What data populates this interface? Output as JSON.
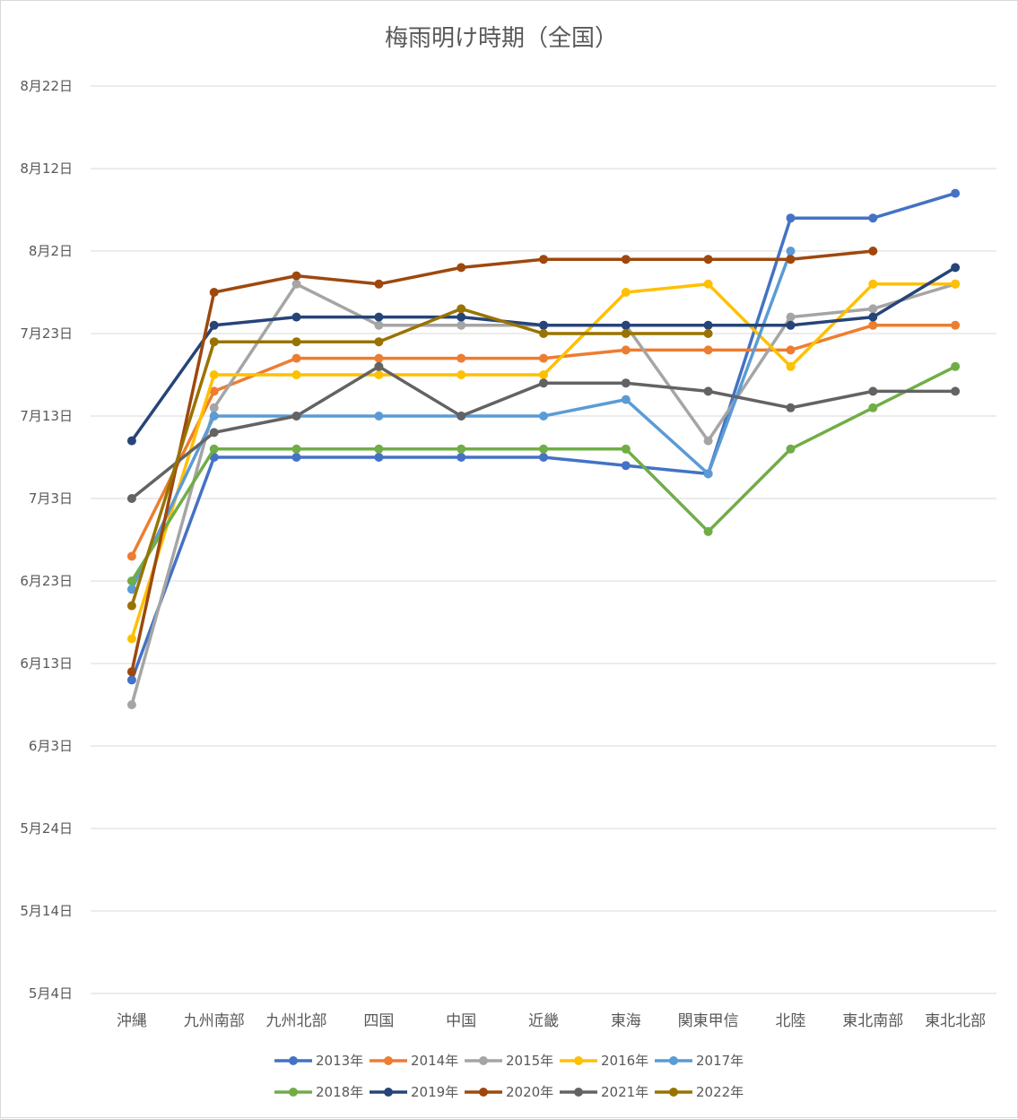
{
  "chart_data": {
    "type": "line",
    "title": "梅雨明け時期（全国）",
    "categories": [
      "沖縄",
      "九州南部",
      "九州北部",
      "四国",
      "中国",
      "近畿",
      "東海",
      "関東甲信",
      "北陸",
      "東北南部",
      "東北北部"
    ],
    "y_ticks": [
      "5月4日",
      "5月14日",
      "5月24日",
      "6月3日",
      "6月13日",
      "6月23日",
      "7月3日",
      "7月13日",
      "7月23日",
      "8月2日",
      "8月12日",
      "8月22日"
    ],
    "ylim": [
      "5月4日",
      "8月22日"
    ],
    "grid": true,
    "legend_position": "bottom",
    "series": [
      {
        "name": "2013年",
        "color": "#4472C4",
        "values": [
          "6月11日",
          "7月8日",
          "7月8日",
          "7月8日",
          "7月8日",
          "7月8日",
          "7月7日",
          "7月6日",
          "8月6日",
          "8月6日",
          "8月9日"
        ]
      },
      {
        "name": "2014年",
        "color": "#ED7D31",
        "values": [
          "6月26日",
          "7月16日",
          "7月20日",
          "7月20日",
          "7月20日",
          "7月20日",
          "7月21日",
          "7月21日",
          "7月21日",
          "7月24日",
          "7月24日"
        ]
      },
      {
        "name": "2015年",
        "color": "#A5A5A5",
        "values": [
          "6月8日",
          "7月14日",
          "7月29日",
          "7月24日",
          "7月24日",
          "7月24日",
          "7月24日",
          "7月10日",
          "7月25日",
          "7月26日",
          "7月29日"
        ]
      },
      {
        "name": "2016年",
        "color": "#FFC000",
        "values": [
          "6月16日",
          "7月18日",
          "7月18日",
          "7月18日",
          "7月18日",
          "7月18日",
          "7月28日",
          "7月29日",
          "7月19日",
          "7月29日",
          "7月29日"
        ]
      },
      {
        "name": "2017年",
        "color": "#5B9BD5",
        "values": [
          "6月22日",
          "7月13日",
          "7月13日",
          "7月13日",
          "7月13日",
          "7月13日",
          "7月15日",
          "7月6日",
          "8月2日",
          null,
          null
        ]
      },
      {
        "name": "2018年",
        "color": "#70AD47",
        "values": [
          "6月23日",
          "7月9日",
          "7月9日",
          "7月9日",
          "7月9日",
          "7月9日",
          "7月9日",
          "6月29日",
          "7月9日",
          "7月14日",
          "7月19日"
        ]
      },
      {
        "name": "2019年",
        "color": "#264478",
        "values": [
          "7月10日",
          "7月24日",
          "7月25日",
          "7月25日",
          "7月25日",
          "7月24日",
          "7月24日",
          "7月24日",
          "7月24日",
          "7月25日",
          "7月31日"
        ]
      },
      {
        "name": "2020年",
        "color": "#9E480E",
        "values": [
          "6月12日",
          "7月28日",
          "7月30日",
          "7月29日",
          "7月31日",
          "8月1日",
          "8月1日",
          "8月1日",
          "8月1日",
          "8月2日",
          null
        ]
      },
      {
        "name": "2021年",
        "color": "#636363",
        "values": [
          "7月3日",
          "7月11日",
          "7月13日",
          "7月19日",
          "7月13日",
          "7月17日",
          "7月17日",
          "7月16日",
          "7月14日",
          "7月16日",
          "7月16日"
        ]
      },
      {
        "name": "2022年",
        "color": "#997300",
        "values": [
          "6月20日",
          "7月22日",
          "7月22日",
          "7月22日",
          "7月26日",
          "7月23日",
          "7月23日",
          "7月23日",
          null,
          null,
          null
        ]
      }
    ]
  }
}
